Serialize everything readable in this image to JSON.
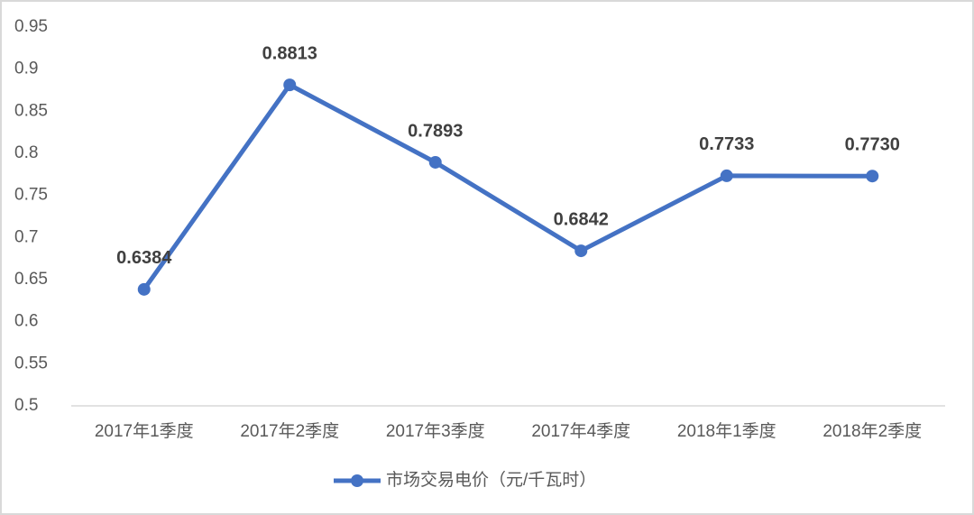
{
  "chart_data": {
    "type": "line",
    "categories": [
      "2017年1季度",
      "2017年2季度",
      "2017年3季度",
      "2017年4季度",
      "2018年1季度",
      "2018年2季度"
    ],
    "series": [
      {
        "name": "市场交易电价（元/千瓦时）",
        "color": "#4472c4",
        "values": [
          0.6384,
          0.8813,
          0.7893,
          0.6842,
          0.7733,
          0.773
        ],
        "value_labels": [
          "0.6384",
          "0.8813",
          "0.7893",
          "0.6842",
          "0.7733",
          "0.7730"
        ]
      }
    ],
    "ylim": [
      0.5,
      0.95
    ],
    "yticks": [
      0.5,
      0.55,
      0.6,
      0.65,
      0.7,
      0.75,
      0.8,
      0.85,
      0.9,
      0.95
    ],
    "grid": false,
    "legend": "bottom"
  }
}
